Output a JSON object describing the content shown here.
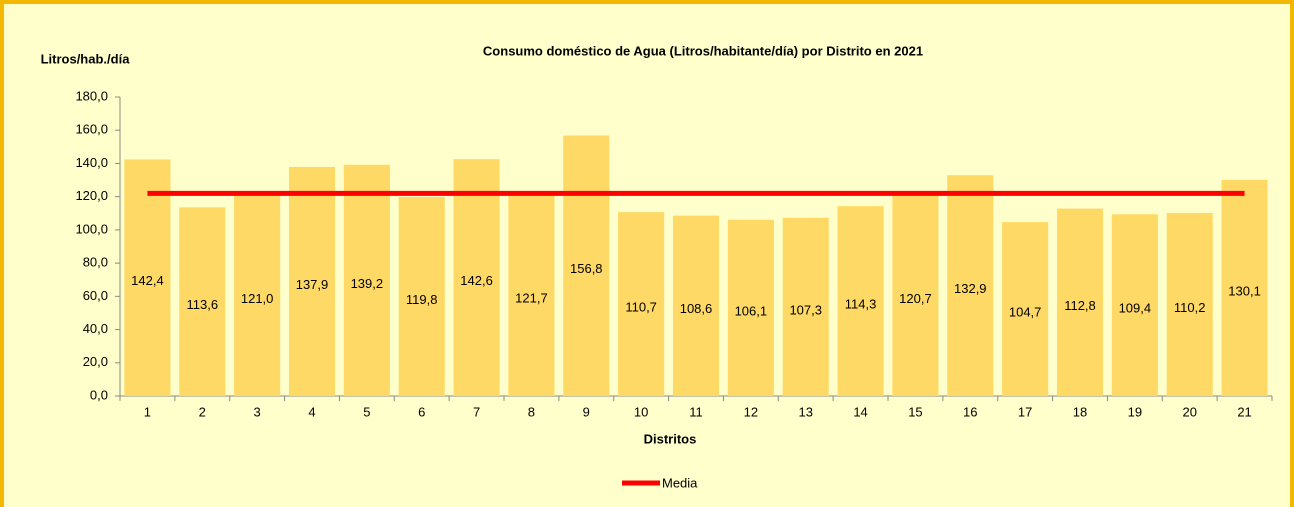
{
  "chart_data": {
    "type": "bar",
    "title": "Consumo doméstico de Agua (Litros/habitante/día) por Distrito en 2021",
    "y_label": "Litros/hab./día",
    "x_label": "Distritos",
    "categories": [
      "1",
      "2",
      "3",
      "4",
      "5",
      "6",
      "7",
      "8",
      "9",
      "10",
      "11",
      "12",
      "13",
      "14",
      "15",
      "16",
      "17",
      "18",
      "19",
      "20",
      "21"
    ],
    "series": [
      {
        "type": "bar",
        "color": "#ffd966",
        "values": [
          142.4,
          113.6,
          121.0,
          137.9,
          139.2,
          119.8,
          142.6,
          121.7,
          156.8,
          110.7,
          108.6,
          106.1,
          107.3,
          114.3,
          120.7,
          132.9,
          104.7,
          112.8,
          109.4,
          110.2,
          130.1
        ],
        "value_labels": [
          "142,4",
          "113,6",
          "121,0",
          "137,9",
          "139,2",
          "119,8",
          "142,6",
          "121,7",
          "156,8",
          "110,7",
          "108,6",
          "106,1",
          "107,3",
          "114,3",
          "120,7",
          "132,9",
          "104,7",
          "112,8",
          "109,4",
          "110,2",
          "130,1"
        ]
      },
      {
        "name": "Media",
        "type": "line",
        "color": "#ff0000",
        "values": [
          122.0,
          122.0,
          122.0,
          122.0,
          122.0,
          122.0,
          122.0,
          122.0,
          122.0,
          122.0,
          122.0,
          122.0,
          122.0,
          122.0,
          122.0,
          122.0,
          122.0,
          122.0,
          122.0,
          122.0,
          122.0
        ]
      }
    ],
    "ylim": [
      0,
      180
    ],
    "yticks": [
      {
        "value": 0,
        "label": "0,0"
      },
      {
        "value": 20,
        "label": "20,0"
      },
      {
        "value": 40,
        "label": "40,0"
      },
      {
        "value": 60,
        "label": "60,0"
      },
      {
        "value": 80,
        "label": "80,0"
      },
      {
        "value": 100,
        "label": "100,0"
      },
      {
        "value": 120,
        "label": "120,0"
      },
      {
        "value": 140,
        "label": "140,0"
      },
      {
        "value": 160,
        "label": "160,0"
      },
      {
        "value": 180,
        "label": "180,0"
      }
    ],
    "legend": "bottom"
  }
}
